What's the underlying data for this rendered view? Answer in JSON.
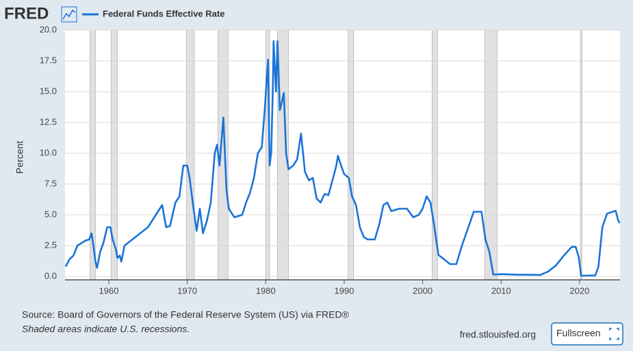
{
  "chart_data": {
    "type": "line",
    "logo": "FRED",
    "ylabel": "Percent",
    "source": "Source: Board of Governors of the Federal Reserve System (US) via FRED®",
    "note": "Shaded areas indicate U.S. recessions.",
    "site": "fred.stlouisfed.org",
    "button": "Fullscreen",
    "grid": true,
    "xlim": [
      1954.42,
      2025.15
    ],
    "ylim": [
      -0.28,
      20.0
    ],
    "xticks": [
      1960,
      1970,
      1980,
      1990,
      2000,
      2010,
      2020
    ],
    "yticks": [
      {
        "value": 0,
        "label": "0.0"
      },
      {
        "value": 2.5,
        "label": "2.5"
      },
      {
        "value": 5,
        "label": "5.0"
      },
      {
        "value": 7.5,
        "label": "7.5"
      },
      {
        "value": 10,
        "label": "10.0"
      },
      {
        "value": 12.5,
        "label": "12.5"
      },
      {
        "value": 15,
        "label": "15.0"
      },
      {
        "value": 17.5,
        "label": "17.5"
      },
      {
        "value": 20,
        "label": "20.0"
      }
    ],
    "recessions": [
      [
        1957.6,
        1958.3
      ],
      [
        1960.3,
        1961.1
      ],
      [
        1969.9,
        1970.9
      ],
      [
        1973.9,
        1975.2
      ],
      [
        1980.0,
        1980.5
      ],
      [
        1981.5,
        1982.9
      ],
      [
        1990.5,
        1991.2
      ],
      [
        2001.2,
        2001.9
      ],
      [
        2007.9,
        2009.5
      ],
      [
        2020.1,
        2020.3
      ]
    ],
    "x": [
      1954.5,
      1955,
      1955.5,
      1956,
      1956.5,
      1957,
      1957.5,
      1957.8,
      1958.0,
      1958.3,
      1958.5,
      1958.9,
      1959.3,
      1959.8,
      1960.2,
      1960.5,
      1960.9,
      1961.1,
      1961.4,
      1961.6,
      1962,
      1963,
      1964,
      1965,
      1966,
      1966.8,
      1967.3,
      1967.8,
      1968.5,
      1969,
      1969.5,
      1970,
      1970.3,
      1970.8,
      1971.2,
      1971.6,
      1972,
      1972.5,
      1973,
      1973.5,
      1973.8,
      1974.1,
      1974.6,
      1975,
      1975.3,
      1976,
      1977,
      1977.5,
      1978,
      1978.5,
      1979,
      1979.5,
      1979.9,
      1980.3,
      1980.5,
      1980.7,
      1980.9,
      1981.0,
      1981.3,
      1981.5,
      1981.8,
      1982,
      1982.3,
      1982.6,
      1982.9,
      1983.5,
      1984,
      1984.5,
      1985,
      1985.5,
      1986,
      1986.5,
      1987,
      1987.5,
      1988,
      1988.5,
      1989.0,
      1989.2,
      1989.6,
      1990,
      1990.6,
      1991,
      1991.5,
      1992,
      1992.5,
      1993,
      1993.9,
      1994.5,
      1995,
      1995.5,
      1996,
      1997,
      1998,
      1998.8,
      1999.5,
      2000,
      2000.5,
      2001,
      2001.5,
      2002,
      2003,
      2003.5,
      2004.3,
      2005,
      2006,
      2006.5,
      2007.5,
      2008,
      2008.5,
      2009,
      2010,
      2012,
      2015,
      2016,
      2017,
      2018,
      2019,
      2019.5,
      2019.9,
      2020.2,
      2022,
      2022.4,
      2022.9,
      2023.5,
      2024.6,
      2024.9,
      2025.1
    ],
    "series": [
      {
        "name": "Federal Funds Effective Rate",
        "color": "#1a73d9",
        "values": [
          0.8,
          1.4,
          1.7,
          2.5,
          2.7,
          2.9,
          3.0,
          3.5,
          2.7,
          1.2,
          0.7,
          2.0,
          2.7,
          4.0,
          4.0,
          3.0,
          2.2,
          1.5,
          1.7,
          1.2,
          2.5,
          3.0,
          3.5,
          4.0,
          5.0,
          5.8,
          4.0,
          4.1,
          6.0,
          6.5,
          9.0,
          9.0,
          8.0,
          5.5,
          3.7,
          5.5,
          3.5,
          4.5,
          6.0,
          10.0,
          10.7,
          9.0,
          12.9,
          7.0,
          5.5,
          4.8,
          5.0,
          6.0,
          6.8,
          8.0,
          10.0,
          10.5,
          13.8,
          17.6,
          9.0,
          10.0,
          15.0,
          19.1,
          15.0,
          19.1,
          13.5,
          14.0,
          14.9,
          10.0,
          8.7,
          9.0,
          9.5,
          11.6,
          8.5,
          7.8,
          8.0,
          6.3,
          6.0,
          6.7,
          6.6,
          7.8,
          9.0,
          9.8,
          9.0,
          8.3,
          8.0,
          6.5,
          5.8,
          4.0,
          3.2,
          3.0,
          3.0,
          4.3,
          5.8,
          6.0,
          5.3,
          5.5,
          5.5,
          4.8,
          5.0,
          5.5,
          6.5,
          6.0,
          4.0,
          1.75,
          1.25,
          1.0,
          1.0,
          2.5,
          4.3,
          5.25,
          5.25,
          3.0,
          2.0,
          0.15,
          0.18,
          0.14,
          0.12,
          0.4,
          0.9,
          1.7,
          2.4,
          2.4,
          1.55,
          0.05,
          0.08,
          0.8,
          4.0,
          5.1,
          5.33,
          4.6,
          4.33
        ]
      }
    ]
  }
}
